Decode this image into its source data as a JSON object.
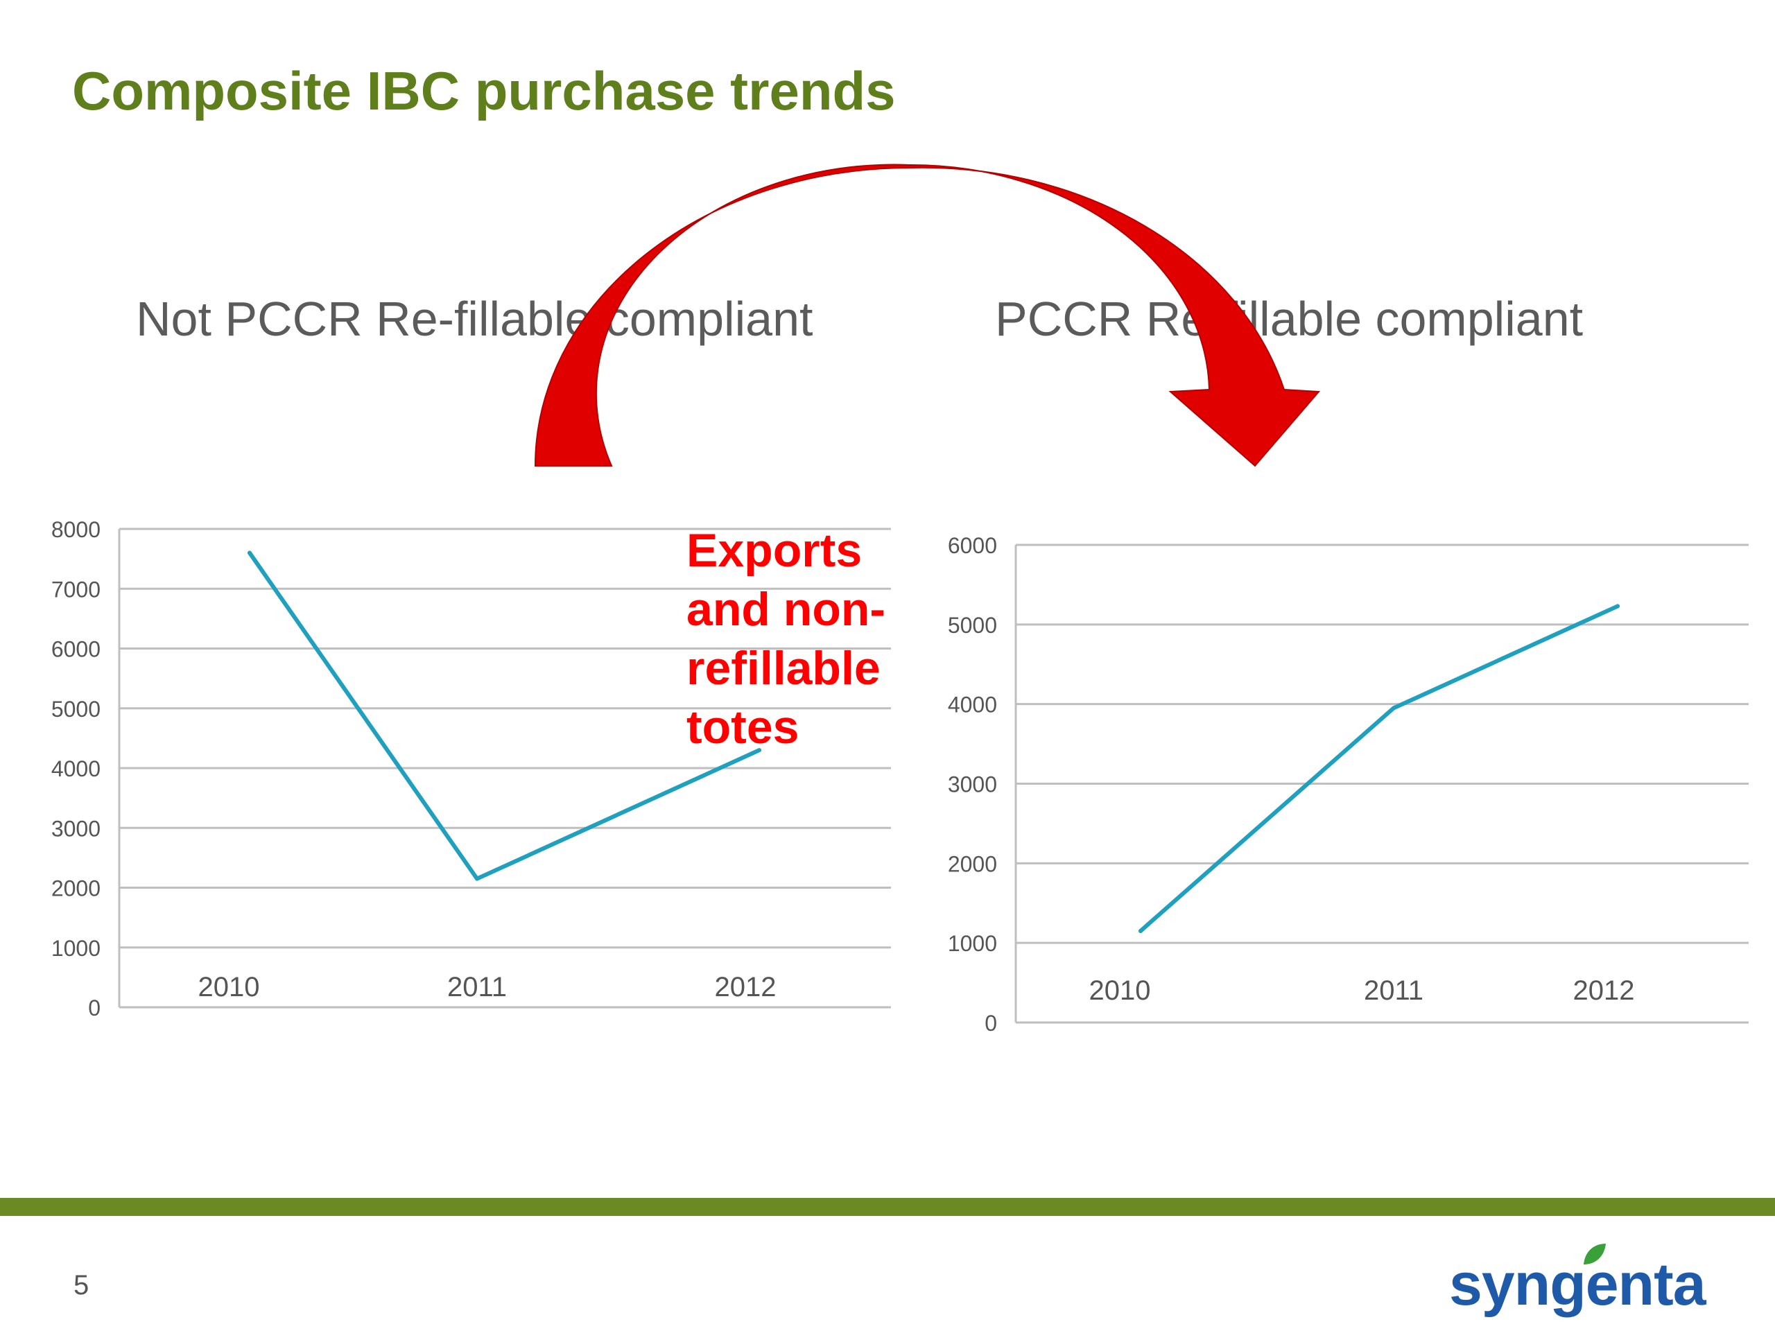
{
  "slide": {
    "title": "Composite IBC purchase trends",
    "page_number": "5",
    "callout": [
      "Exports",
      "and non-",
      "refillable",
      "totes"
    ],
    "logo_text": "syngenta"
  },
  "colors": {
    "title": "#5f7f1c",
    "line": "#1fa0bf",
    "grid": "#bfbfbf",
    "arrow": "#e00000",
    "callout": "#ff0000",
    "footer_bar": "#6b8a23",
    "logo": "#1f5aa8",
    "logo_leaf": "#3aa03a"
  },
  "icons": {
    "arrow": "curved-arrow-icon",
    "logo_leaf": "leaf-icon"
  },
  "chart_data": [
    {
      "type": "line",
      "title": "Not PCCR Re-fillable compliant",
      "categories": [
        "2010",
        "2011",
        "2012"
      ],
      "series": [
        {
          "values": [
            7600,
            2150,
            4300
          ]
        }
      ],
      "ylim": [
        0,
        8000
      ],
      "yticks": [
        0,
        1000,
        2000,
        3000,
        4000,
        5000,
        6000,
        7000,
        8000
      ],
      "grid": true
    },
    {
      "type": "line",
      "title": "PCCR Re-fillable compliant",
      "categories": [
        "2010",
        "2011",
        "2012"
      ],
      "series": [
        {
          "values": [
            1150,
            3950,
            5230
          ]
        }
      ],
      "ylim": [
        0,
        6000
      ],
      "yticks": [
        0,
        1000,
        2000,
        3000,
        4000,
        5000,
        6000
      ],
      "grid": true
    }
  ]
}
